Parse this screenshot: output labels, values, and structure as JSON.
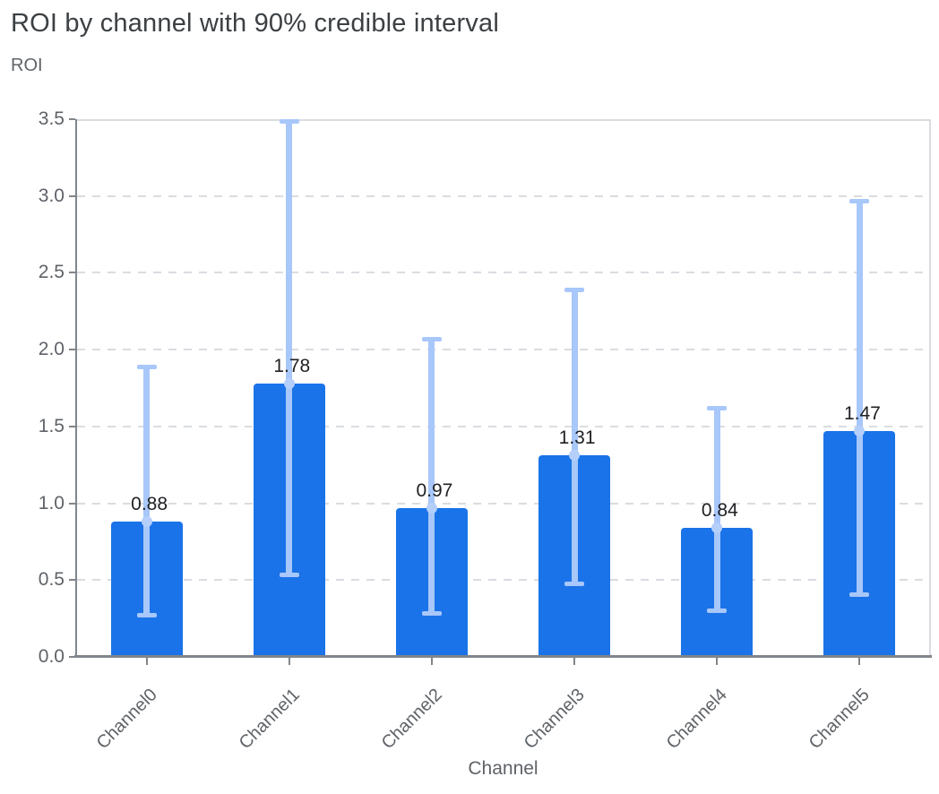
{
  "header": {
    "title": "ROI by channel with 90% credible interval"
  },
  "chart_data": {
    "type": "bar",
    "title": "ROI by channel with 90% credible interval",
    "xlabel": "Channel",
    "ylabel": "ROI",
    "categories": [
      "Channel0",
      "Channel1",
      "Channel2",
      "Channel3",
      "Channel4",
      "Channel5"
    ],
    "values": [
      0.88,
      1.78,
      0.97,
      1.31,
      0.84,
      1.47
    ],
    "value_labels": [
      "0.88",
      "1.78",
      "0.97",
      "1.31",
      "0.84",
      "1.47"
    ],
    "error_low": [
      0.27,
      0.53,
      0.28,
      0.47,
      0.3,
      0.4
    ],
    "error_high": [
      1.89,
      3.49,
      2.07,
      2.39,
      1.62,
      2.97
    ],
    "error_kind": "90% credible interval",
    "ylim": [
      0,
      3.5
    ],
    "yticks": [
      0.0,
      0.5,
      1.0,
      1.5,
      2.0,
      2.5,
      3.0,
      3.5
    ],
    "ytick_labels": [
      "0.0",
      "0.5",
      "1.0",
      "1.5",
      "2.0",
      "2.5",
      "3.0",
      "3.5"
    ],
    "grid": true,
    "gridline_style": "dashed",
    "legend": "none",
    "colors": {
      "bar": "#1a73e8",
      "error_bar": "#a8c7fa",
      "axis": "#80868b",
      "gridline": "#dadce0",
      "title_text": "#3c4043",
      "secondary_text": "#5f6368",
      "value_label_text": "#202124"
    }
  }
}
